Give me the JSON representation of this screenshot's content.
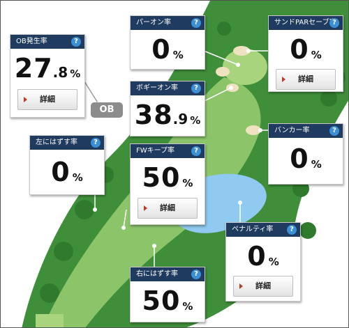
{
  "ob_rate": {
    "title": "OB発生率",
    "int": "27",
    "dec": ".8",
    "unit": "%",
    "button": "詳細"
  },
  "par_on_rate": {
    "title": "パーオン率",
    "int": "0",
    "dec": "",
    "unit": "%"
  },
  "sand_save_rate": {
    "title": "サンドPARセーブ率",
    "int": "0",
    "dec": "",
    "unit": "%",
    "button": "詳細"
  },
  "bogey_on_rate": {
    "title": "ボギーオン率",
    "int": "38",
    "dec": ".9",
    "unit": "%"
  },
  "left_miss_rate": {
    "title": "左にはずす率",
    "int": "0",
    "dec": "",
    "unit": "%"
  },
  "fw_keep_rate": {
    "title": "FWキープ率",
    "int": "50",
    "dec": "",
    "unit": "%",
    "button": "詳細"
  },
  "bunker_rate": {
    "title": "バンカー率",
    "int": "0",
    "dec": "",
    "unit": "%"
  },
  "penalty_rate": {
    "title": "ペナルティ率",
    "int": "0",
    "dec": "",
    "unit": "%",
    "button": "詳細"
  },
  "right_miss_rate": {
    "title": "右にはずす率",
    "int": "50",
    "dec": "",
    "unit": "%"
  },
  "ob_marker": "OB",
  "help_glyph": "?",
  "colors": {
    "header": "#1f3b5f",
    "help": "#3a8fd6",
    "rough": "#3f8f3a",
    "fairway": "#8cc46a",
    "water": "#8fcaf0"
  }
}
